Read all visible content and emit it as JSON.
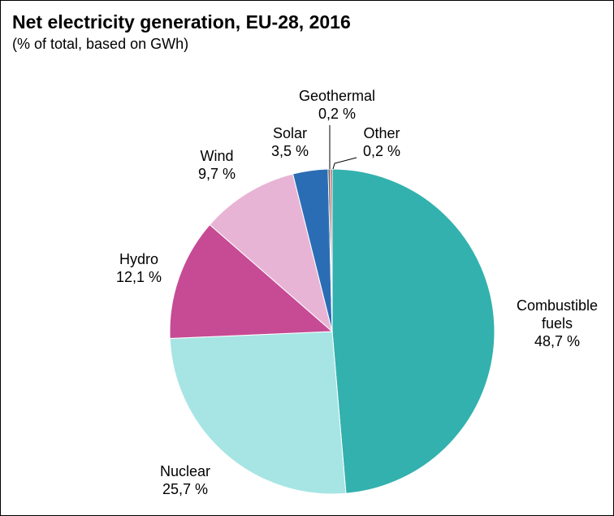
{
  "chart_data": {
    "type": "pie",
    "title": "Net electricity generation, EU-28, 2016",
    "subtitle": "(% of total, based on GWh)",
    "slices": [
      {
        "name": "Combustible fuels",
        "label_lines": [
          "Combustible",
          "fuels"
        ],
        "value": 48.7,
        "value_label": "48,7 %",
        "color": "#33b1ae"
      },
      {
        "name": "Nuclear",
        "label_lines": [
          "Nuclear"
        ],
        "value": 25.7,
        "value_label": "25,7 %",
        "color": "#a6e5e4"
      },
      {
        "name": "Hydro",
        "label_lines": [
          "Hydro"
        ],
        "value": 12.1,
        "value_label": "12,1 %",
        "color": "#c64b94"
      },
      {
        "name": "Wind",
        "label_lines": [
          "Wind"
        ],
        "value": 9.7,
        "value_label": "9,7 %",
        "color": "#e8b4d5"
      },
      {
        "name": "Solar",
        "label_lines": [
          "Solar"
        ],
        "value": 3.5,
        "value_label": "3,5 %",
        "color": "#2b6db5"
      },
      {
        "name": "Geothermal",
        "label_lines": [
          "Geothermal"
        ],
        "value": 0.2,
        "value_label": "0,2 %",
        "color": "#4d4d4d"
      },
      {
        "name": "Other",
        "label_lines": [
          "Other"
        ],
        "value": 0.2,
        "value_label": "0,2 %",
        "color": "#b35858"
      }
    ]
  }
}
